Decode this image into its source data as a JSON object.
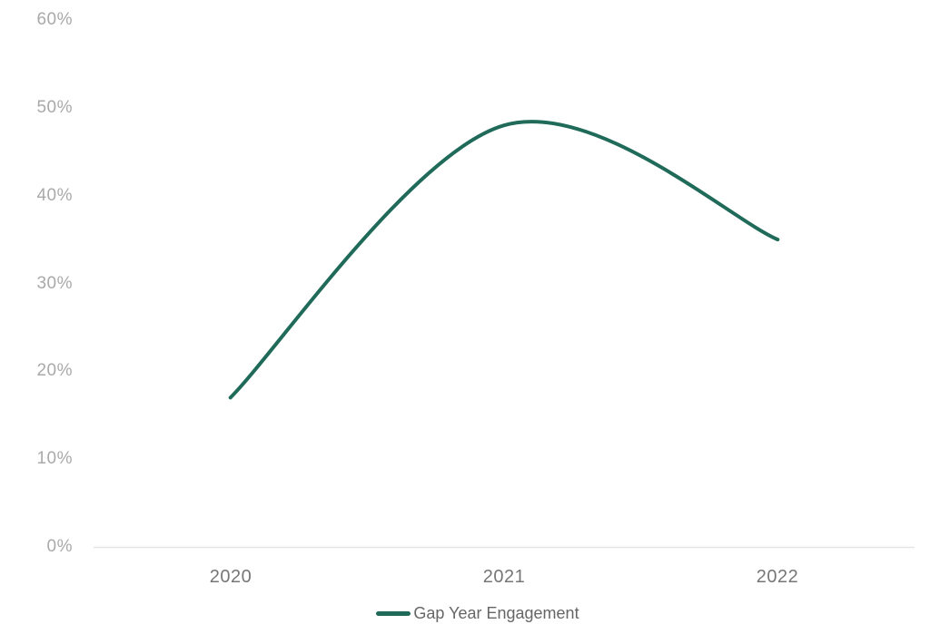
{
  "chart_data": {
    "type": "line",
    "title": "",
    "xlabel": "",
    "ylabel": "",
    "categories": [
      "2020",
      "2021",
      "2022"
    ],
    "series": [
      {
        "name": "Gap Year Engagement",
        "values": [
          17,
          48,
          35
        ],
        "color": "#1F6A59",
        "line_style": "smooth",
        "line_width": 4
      }
    ],
    "ylim": [
      0,
      60
    ],
    "y_tick_labels": [
      "0%",
      "10%",
      "20%",
      "30%",
      "40%",
      "50%",
      "60%"
    ],
    "grid": false,
    "markers": false,
    "legend_position": "bottom"
  },
  "legend": {
    "label": "Gap Year Engagement"
  },
  "colors": {
    "line": "#1F6A59",
    "y_tick_text": "#A9A9A9",
    "x_tick_text": "#767676",
    "legend_text": "#666666",
    "axis_line": "#E5E5E5",
    "background": "#FFFFFF"
  }
}
